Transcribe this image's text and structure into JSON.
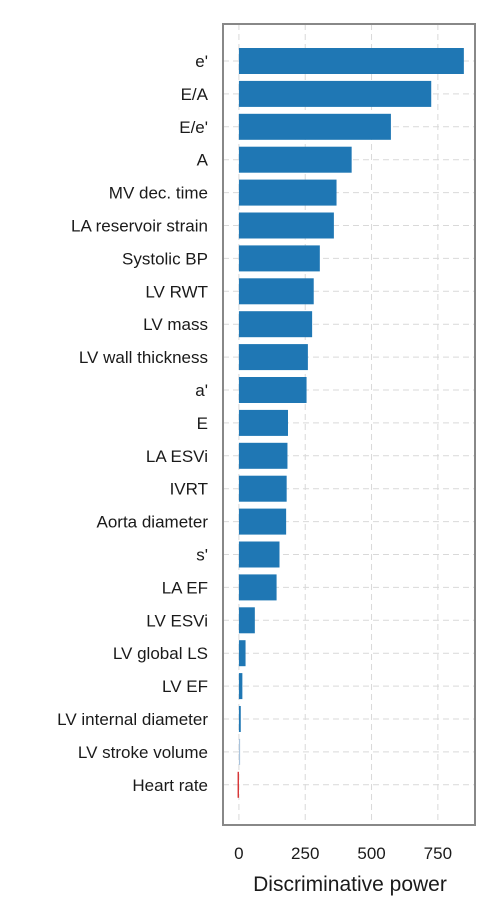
{
  "chart_data": {
    "type": "bar",
    "orientation": "horizontal",
    "categories": [
      "e'",
      "E/A",
      "E/e'",
      "A",
      "MV dec. time",
      "LA reservoir strain",
      "Systolic BP",
      "LV RWT",
      "LV mass",
      "LV wall thickness",
      "a'",
      "E",
      "LA ESVi",
      "IVRT",
      "Aorta diameter",
      "s'",
      "LA EF",
      "LV ESVi",
      "LV global LS",
      "LV EF",
      "LV internal diameter",
      "LV stroke volume",
      "Heart rate"
    ],
    "values": [
      848,
      725,
      573,
      425,
      368,
      358,
      305,
      282,
      276,
      260,
      255,
      185,
      183,
      180,
      178,
      153,
      142,
      60,
      25,
      13,
      7,
      2,
      -5
    ],
    "bar_colors": [
      "#1f77b4",
      "#1f77b4",
      "#1f77b4",
      "#1f77b4",
      "#1f77b4",
      "#1f77b4",
      "#1f77b4",
      "#1f77b4",
      "#1f77b4",
      "#1f77b4",
      "#1f77b4",
      "#1f77b4",
      "#1f77b4",
      "#1f77b4",
      "#1f77b4",
      "#1f77b4",
      "#1f77b4",
      "#1f77b4",
      "#1f77b4",
      "#1f77b4",
      "#1f77b4",
      "#a9c3dc",
      "#d62728"
    ],
    "xlabel": "Discriminative power",
    "ylabel": "",
    "xlim": [
      -60,
      890
    ],
    "xticks": [
      0,
      250,
      500,
      750
    ],
    "xtick_labels": [
      "0",
      "250",
      "500",
      "750"
    ],
    "grid": true,
    "grid_color": "#d9d9d9",
    "frame_color": "#888888"
  }
}
